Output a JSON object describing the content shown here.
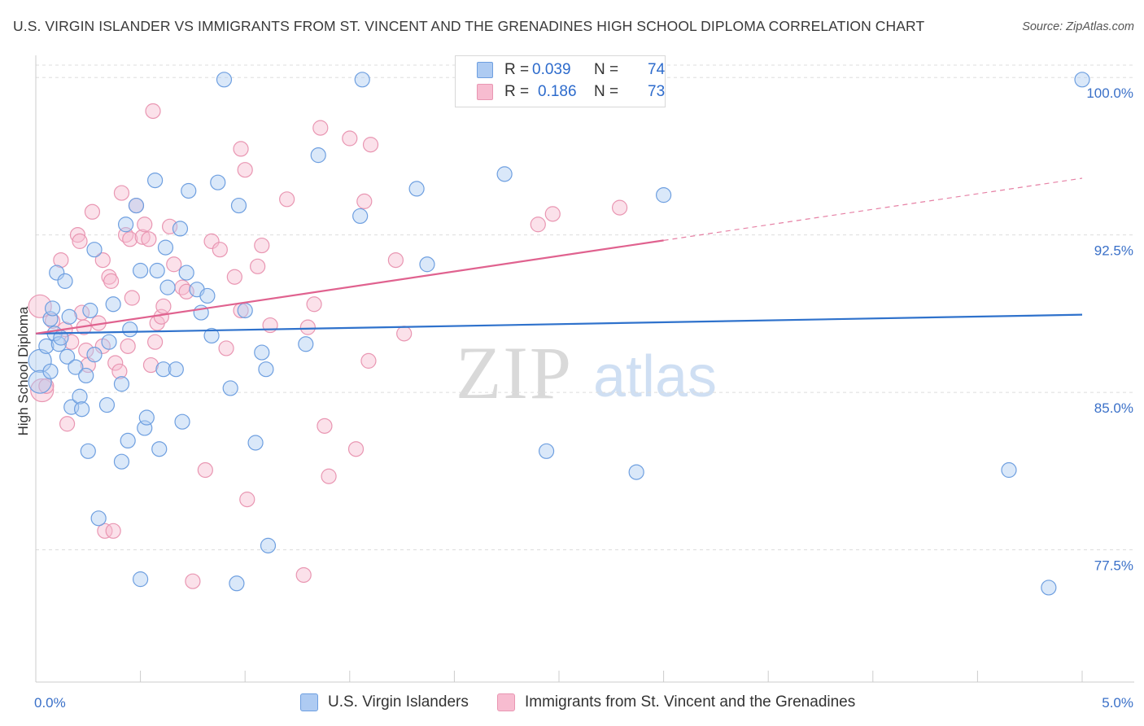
{
  "title": "U.S. VIRGIN ISLANDER VS IMMIGRANTS FROM ST. VINCENT AND THE GRENADINES HIGH SCHOOL DIPLOMA CORRELATION CHART",
  "source": "Source: ZipAtlas.com",
  "watermark": {
    "zip": "ZIP",
    "atlas": "atlas"
  },
  "legend": {
    "r_label": "R =",
    "n_label": "N =",
    "series": [
      {
        "r": "0.039",
        "n": "74"
      },
      {
        "r": "0.186",
        "n": "73"
      }
    ]
  },
  "colors": {
    "blue_fill": "#aecbf2",
    "blue_stroke": "#6e9fe0",
    "blue_line": "#2f72cc",
    "pink_fill": "#f7bcd0",
    "pink_stroke": "#e996b2",
    "pink_line": "#e0628f",
    "tick_label": "#3a70c8",
    "grid": "#dddddd"
  },
  "chart_data": {
    "type": "scatter",
    "title": "U.S. VIRGIN ISLANDER VS IMMIGRANTS FROM ST. VINCENT AND THE GRENADINES HIGH SCHOOL DIPLOMA CORRELATION CHART",
    "xlabel": "",
    "ylabel": "High School Diploma",
    "xlim": [
      0,
      5
    ],
    "ylim": [
      71.2,
      100.9
    ],
    "x_tick_labels": [
      {
        "value": 0,
        "label": "0.0%"
      },
      {
        "value": 5,
        "label": "5.0%"
      }
    ],
    "y_ticks": [
      {
        "value": 77.5,
        "label": "77.5%"
      },
      {
        "value": 85.0,
        "label": "85.0%"
      },
      {
        "value": 92.5,
        "label": "92.5%"
      },
      {
        "value": 100.0,
        "label": "100.0%"
      }
    ],
    "grid": true,
    "series": [
      {
        "name": "U.S. Virgin Islanders",
        "trend": {
          "x0": 0,
          "y0": 87.8,
          "x1": 5,
          "y1": 88.7,
          "dashed_from": null
        },
        "points": [
          [
            0.02,
            86.5
          ],
          [
            0.02,
            85.5
          ],
          [
            0.05,
            87.2
          ],
          [
            0.07,
            88.5
          ],
          [
            0.08,
            89.0
          ],
          [
            0.09,
            87.8
          ],
          [
            0.1,
            90.7
          ],
          [
            0.11,
            87.3
          ],
          [
            0.12,
            87.6
          ],
          [
            0.14,
            90.3
          ],
          [
            0.15,
            86.7
          ],
          [
            0.17,
            84.3
          ],
          [
            0.19,
            86.2
          ],
          [
            0.21,
            84.8
          ],
          [
            0.22,
            84.2
          ],
          [
            0.24,
            85.8
          ],
          [
            0.25,
            82.2
          ],
          [
            0.26,
            88.9
          ],
          [
            0.28,
            86.8
          ],
          [
            0.28,
            91.8
          ],
          [
            0.34,
            84.4
          ],
          [
            0.35,
            87.4
          ],
          [
            0.37,
            89.2
          ],
          [
            0.41,
            85.4
          ],
          [
            0.41,
            81.7
          ],
          [
            0.43,
            93.0
          ],
          [
            0.44,
            82.7
          ],
          [
            0.45,
            88.0
          ],
          [
            0.48,
            93.9
          ],
          [
            0.5,
            76.1
          ],
          [
            0.5,
            90.8
          ],
          [
            0.52,
            83.3
          ],
          [
            0.53,
            83.8
          ],
          [
            0.57,
            95.1
          ],
          [
            0.58,
            90.8
          ],
          [
            0.59,
            82.3
          ],
          [
            0.61,
            86.1
          ],
          [
            0.62,
            91.9
          ],
          [
            0.67,
            86.1
          ],
          [
            0.69,
            92.8
          ],
          [
            0.7,
            83.6
          ],
          [
            0.72,
            90.7
          ],
          [
            0.73,
            94.6
          ],
          [
            0.77,
            89.9
          ],
          [
            0.79,
            88.8
          ],
          [
            0.82,
            89.6
          ],
          [
            0.84,
            87.7
          ],
          [
            0.87,
            95.0
          ],
          [
            0.9,
            99.9
          ],
          [
            0.93,
            85.2
          ],
          [
            0.96,
            75.9
          ],
          [
            0.97,
            93.9
          ],
          [
            1.0,
            88.9
          ],
          [
            1.05,
            82.6
          ],
          [
            1.08,
            86.9
          ],
          [
            1.1,
            86.1
          ],
          [
            1.11,
            77.7
          ],
          [
            1.29,
            87.3
          ],
          [
            1.35,
            96.3
          ],
          [
            1.55,
            93.4
          ],
          [
            1.56,
            99.9
          ],
          [
            1.82,
            94.7
          ],
          [
            1.87,
            91.1
          ],
          [
            2.24,
            95.4
          ],
          [
            2.44,
            82.2
          ],
          [
            2.87,
            81.2
          ],
          [
            3.0,
            94.4
          ],
          [
            4.65,
            81.3
          ],
          [
            4.84,
            75.7
          ],
          [
            5.0,
            99.9
          ],
          [
            0.07,
            86.0
          ],
          [
            0.3,
            79.0
          ],
          [
            0.16,
            88.6
          ],
          [
            0.63,
            90.0
          ]
        ]
      },
      {
        "name": "Immigrants from St. Vincent and the Grenadines",
        "trend": {
          "x0": 0,
          "y0": 87.8,
          "x1": 5,
          "y1": 95.2,
          "dashed_from": 3.0
        },
        "points": [
          [
            0.02,
            89.1
          ],
          [
            0.03,
            85.1
          ],
          [
            0.05,
            85.3
          ],
          [
            0.08,
            88.4
          ],
          [
            0.12,
            91.3
          ],
          [
            0.15,
            83.5
          ],
          [
            0.17,
            87.4
          ],
          [
            0.2,
            92.5
          ],
          [
            0.21,
            92.2
          ],
          [
            0.22,
            88.8
          ],
          [
            0.23,
            88.1
          ],
          [
            0.24,
            87.0
          ],
          [
            0.25,
            86.3
          ],
          [
            0.27,
            93.6
          ],
          [
            0.3,
            88.3
          ],
          [
            0.32,
            87.2
          ],
          [
            0.32,
            91.3
          ],
          [
            0.33,
            78.4
          ],
          [
            0.35,
            90.5
          ],
          [
            0.36,
            90.3
          ],
          [
            0.37,
            78.4
          ],
          [
            0.38,
            86.4
          ],
          [
            0.4,
            86.0
          ],
          [
            0.41,
            94.5
          ],
          [
            0.43,
            92.5
          ],
          [
            0.44,
            87.2
          ],
          [
            0.45,
            92.3
          ],
          [
            0.48,
            93.9
          ],
          [
            0.51,
            92.4
          ],
          [
            0.52,
            93.0
          ],
          [
            0.54,
            92.3
          ],
          [
            0.55,
            86.3
          ],
          [
            0.56,
            98.4
          ],
          [
            0.57,
            87.4
          ],
          [
            0.58,
            88.3
          ],
          [
            0.6,
            88.6
          ],
          [
            0.61,
            89.1
          ],
          [
            0.64,
            92.9
          ],
          [
            0.66,
            91.1
          ],
          [
            0.7,
            90.0
          ],
          [
            0.72,
            89.8
          ],
          [
            0.75,
            76.0
          ],
          [
            0.81,
            81.3
          ],
          [
            0.84,
            92.2
          ],
          [
            0.88,
            91.8
          ],
          [
            0.91,
            87.1
          ],
          [
            0.95,
            90.5
          ],
          [
            0.98,
            96.6
          ],
          [
            0.98,
            88.9
          ],
          [
            1.0,
            95.6
          ],
          [
            1.01,
            79.9
          ],
          [
            1.06,
            91.0
          ],
          [
            1.08,
            92.0
          ],
          [
            1.12,
            88.2
          ],
          [
            1.2,
            94.2
          ],
          [
            1.28,
            76.3
          ],
          [
            1.3,
            88.1
          ],
          [
            1.33,
            89.2
          ],
          [
            1.36,
            97.6
          ],
          [
            1.38,
            83.4
          ],
          [
            1.4,
            81.0
          ],
          [
            1.5,
            97.1
          ],
          [
            1.53,
            82.3
          ],
          [
            1.57,
            94.1
          ],
          [
            1.59,
            86.5
          ],
          [
            1.6,
            96.8
          ],
          [
            1.72,
            91.3
          ],
          [
            1.76,
            87.8
          ],
          [
            2.4,
            93.0
          ],
          [
            2.47,
            93.5
          ],
          [
            2.79,
            93.8
          ],
          [
            0.14,
            88.0
          ],
          [
            0.46,
            89.5
          ]
        ]
      }
    ]
  },
  "bottom_legend": [
    {
      "label": "U.S. Virgin Islanders"
    },
    {
      "label": "Immigrants from St. Vincent and the Grenadines"
    }
  ]
}
